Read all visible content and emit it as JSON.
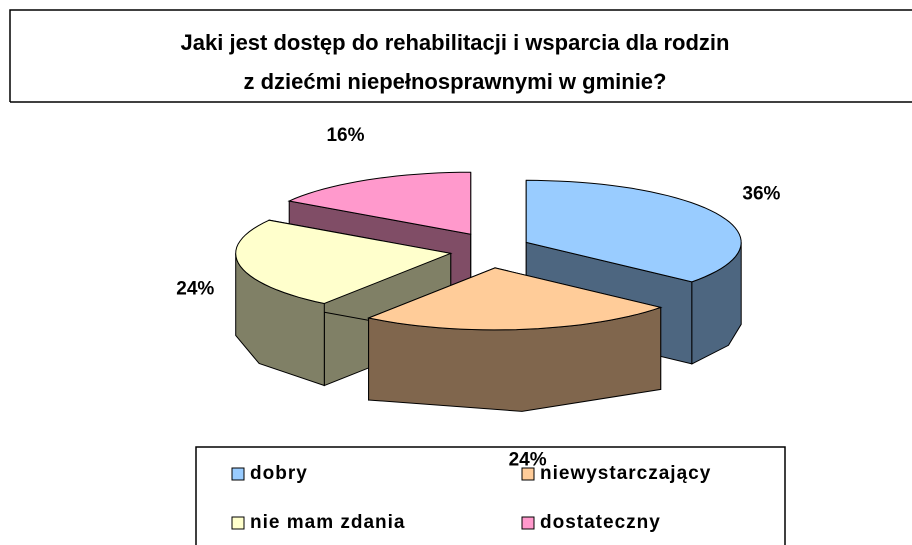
{
  "chart_data": {
    "type": "pie3d",
    "title": [
      "Jaki jest dostęp do rehabilitacji i wsparcia dla rodzin",
      "z dziećmi niepełnosprawnymi w gminie?"
    ],
    "categories": [
      "dobry",
      "niewystarczający",
      "nie mam zdania",
      "dostateczny"
    ],
    "values": [
      36,
      24,
      24,
      16
    ],
    "value_labels": [
      "36%",
      "24%",
      "24%",
      "16%"
    ],
    "colors": [
      "#99ccff",
      "#ffcc99",
      "#ffffcc",
      "#ff99cc"
    ],
    "legend": "bottom"
  }
}
